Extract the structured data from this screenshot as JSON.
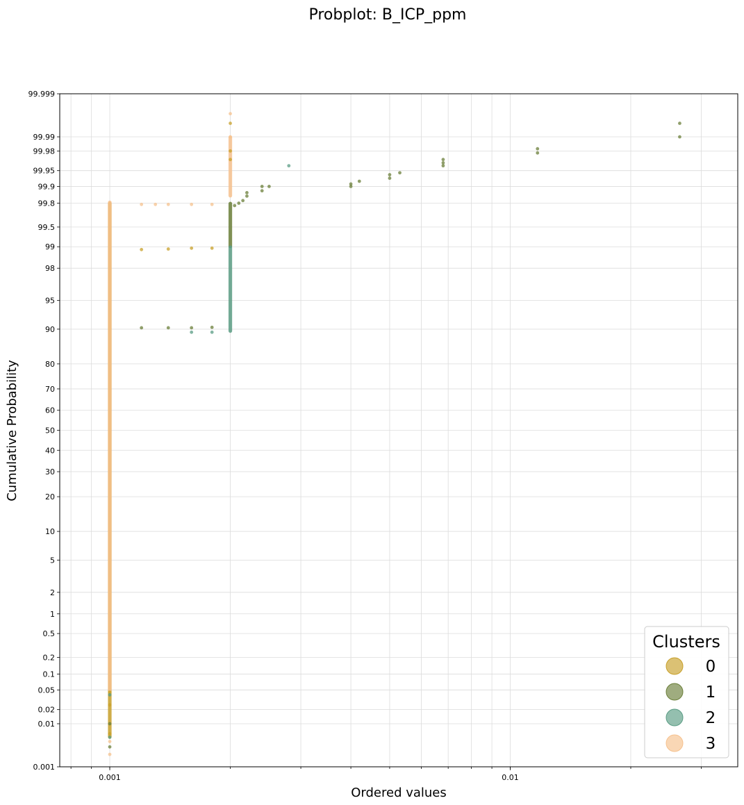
{
  "chart_data": {
    "type": "scatter",
    "title": "Probplot: B_ICP_ppm",
    "xlabel": "Ordered values",
    "ylabel": "Cumulative Probability",
    "x_scale": "log",
    "y_scale": "probability",
    "xlim": [
      0.00075,
      0.037
    ],
    "ylim": [
      0.001,
      99.999
    ],
    "x_ticks": [
      0.001,
      0.01
    ],
    "x_tick_labels": [
      "0.001",
      "0.01"
    ],
    "y_ticks": [
      0.001,
      0.01,
      0.02,
      0.05,
      0.1,
      0.2,
      0.5,
      1,
      2,
      5,
      10,
      20,
      30,
      40,
      50,
      60,
      70,
      80,
      90,
      95,
      98,
      99,
      99.5,
      99.8,
      99.9,
      99.95,
      99.98,
      99.99,
      99.999
    ],
    "y_tick_labels": [
      "0.001",
      "0.01",
      "0.02",
      "0.05",
      "0.1",
      "0.2",
      "0.5",
      "1",
      "2",
      "5",
      "10",
      "20",
      "30",
      "40",
      "50",
      "60",
      "70",
      "80",
      "90",
      "95",
      "98",
      "99",
      "99.5",
      "99.8",
      "99.9",
      "99.95",
      "99.98",
      "99.99",
      "99.999"
    ],
    "grid": true,
    "legend": {
      "title": "Clusters",
      "position": "bottom-right"
    },
    "series": [
      {
        "name": "0",
        "color": "#c8a02a",
        "points": [
          [
            0.001,
            0.006
          ],
          [
            0.001,
            0.025
          ],
          [
            0.001,
            0.045
          ],
          [
            0.0012,
            98.9
          ],
          [
            0.0014,
            98.92
          ],
          [
            0.0016,
            98.95
          ],
          [
            0.0018,
            98.95
          ],
          [
            0.002,
            99.97
          ],
          [
            0.002,
            99.98
          ],
          [
            0.002,
            99.995
          ]
        ],
        "bands": [
          [
            0.001,
            0.005,
            99.8
          ]
        ]
      },
      {
        "name": "1",
        "color": "#6b7f3a",
        "points": [
          [
            0.001,
            0.003
          ],
          [
            0.001,
            0.01
          ],
          [
            0.0012,
            90.3
          ],
          [
            0.0014,
            90.3
          ],
          [
            0.0016,
            90.3
          ],
          [
            0.0018,
            90.4
          ],
          [
            0.00205,
            99.78
          ],
          [
            0.0021,
            99.8
          ],
          [
            0.00215,
            99.82
          ],
          [
            0.0022,
            99.85
          ],
          [
            0.0022,
            99.87
          ],
          [
            0.0024,
            99.88
          ],
          [
            0.0024,
            99.9
          ],
          [
            0.0025,
            99.9
          ],
          [
            0.004,
            99.9
          ],
          [
            0.004,
            99.91
          ],
          [
            0.0042,
            99.92
          ],
          [
            0.005,
            99.93
          ],
          [
            0.005,
            99.94
          ],
          [
            0.0053,
            99.945
          ],
          [
            0.0068,
            99.96
          ],
          [
            0.0068,
            99.965
          ],
          [
            0.0068,
            99.97
          ],
          [
            0.0117,
            99.978
          ],
          [
            0.0117,
            99.982
          ],
          [
            0.0265,
            99.99
          ],
          [
            0.0265,
            99.995
          ]
        ],
        "bands": [
          [
            0.002,
            99.0,
            99.8
          ]
        ]
      },
      {
        "name": "2",
        "color": "#5a9c84",
        "points": [
          [
            0.001,
            0.005
          ],
          [
            0.001,
            0.04
          ],
          [
            0.0016,
            89.3
          ],
          [
            0.0018,
            89.3
          ],
          [
            0.0028,
            99.96
          ]
        ],
        "bands": [
          [
            0.002,
            89.5,
            99.0
          ]
        ]
      },
      {
        "name": "3",
        "color": "#f6c18e",
        "points": [
          [
            0.001,
            0.002
          ],
          [
            0.001,
            0.004
          ],
          [
            0.0012,
            99.79
          ],
          [
            0.0013,
            99.79
          ],
          [
            0.0014,
            99.79
          ],
          [
            0.0016,
            99.79
          ],
          [
            0.0018,
            99.79
          ],
          [
            0.002,
            99.997
          ],
          [
            0.002,
            99.99
          ]
        ],
        "bands": [
          [
            0.001,
            0.05,
            99.81
          ],
          [
            0.002,
            99.85,
            99.99
          ]
        ]
      }
    ]
  }
}
